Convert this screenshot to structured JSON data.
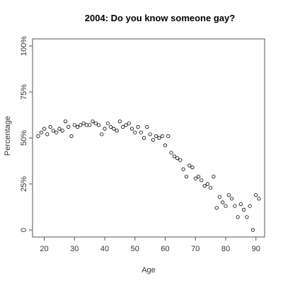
{
  "chart_data": {
    "type": "scatter",
    "title": "2004: Do you know someone gay?",
    "xlabel": "Age",
    "ylabel": "Percentage",
    "xlim": [
      18,
      91
    ],
    "ylim": [
      0,
      1
    ],
    "x_ticks": [
      20,
      30,
      40,
      50,
      60,
      70,
      80,
      90
    ],
    "x_tick_labels": [
      "20",
      "30",
      "40",
      "50",
      "60",
      "70",
      "80",
      "90"
    ],
    "y_ticks": [
      0,
      0.25,
      0.5,
      0.75,
      1.0
    ],
    "y_tick_labels": [
      "0",
      "25%",
      "50%",
      "75%",
      "100%"
    ],
    "grid": false,
    "marker": "open-circle",
    "series": [
      {
        "points": [
          [
            18,
            0.51
          ],
          [
            19,
            0.53
          ],
          [
            20,
            0.55
          ],
          [
            21,
            0.52
          ],
          [
            22,
            0.56
          ],
          [
            23,
            0.54
          ],
          [
            24,
            0.53
          ],
          [
            25,
            0.55
          ],
          [
            26,
            0.54
          ],
          [
            27,
            0.59
          ],
          [
            28,
            0.56
          ],
          [
            29,
            0.51
          ],
          [
            30,
            0.57
          ],
          [
            31,
            0.56
          ],
          [
            32,
            0.57
          ],
          [
            33,
            0.58
          ],
          [
            34,
            0.57
          ],
          [
            35,
            0.57
          ],
          [
            36,
            0.59
          ],
          [
            37,
            0.58
          ],
          [
            38,
            0.57
          ],
          [
            39,
            0.52
          ],
          [
            40,
            0.55
          ],
          [
            41,
            0.58
          ],
          [
            42,
            0.56
          ],
          [
            43,
            0.55
          ],
          [
            44,
            0.54
          ],
          [
            45,
            0.59
          ],
          [
            46,
            0.56
          ],
          [
            47,
            0.57
          ],
          [
            48,
            0.58
          ],
          [
            49,
            0.55
          ],
          [
            50,
            0.53
          ],
          [
            51,
            0.56
          ],
          [
            52,
            0.53
          ],
          [
            53,
            0.5
          ],
          [
            54,
            0.56
          ],
          [
            55,
            0.52
          ],
          [
            56,
            0.49
          ],
          [
            57,
            0.51
          ],
          [
            58,
            0.5
          ],
          [
            59,
            0.51
          ],
          [
            60,
            0.46
          ],
          [
            61,
            0.51
          ],
          [
            62,
            0.42
          ],
          [
            63,
            0.4
          ],
          [
            64,
            0.39
          ],
          [
            65,
            0.38
          ],
          [
            66,
            0.33
          ],
          [
            67,
            0.29
          ],
          [
            68,
            0.35
          ],
          [
            69,
            0.34
          ],
          [
            70,
            0.28
          ],
          [
            71,
            0.29
          ],
          [
            72,
            0.27
          ],
          [
            73,
            0.24
          ],
          [
            74,
            0.25
          ],
          [
            75,
            0.23
          ],
          [
            76,
            0.29
          ],
          [
            77,
            0.12
          ],
          [
            78,
            0.18
          ],
          [
            79,
            0.15
          ],
          [
            80,
            0.13
          ],
          [
            81,
            0.19
          ],
          [
            82,
            0.17
          ],
          [
            83,
            0.13
          ],
          [
            84,
            0.07
          ],
          [
            85,
            0.14
          ],
          [
            86,
            0.11
          ],
          [
            87,
            0.07
          ],
          [
            88,
            0.13
          ],
          [
            89,
            0.0
          ],
          [
            90,
            0.19
          ],
          [
            91,
            0.17
          ]
        ]
      }
    ]
  }
}
